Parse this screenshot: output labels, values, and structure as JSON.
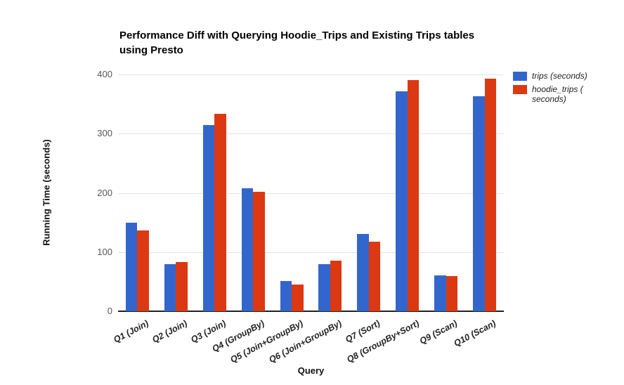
{
  "header": {
    "title_line1": "Performance Diff with Querying Hoodie_Trips and Existing Trips tables",
    "title_line2": "using Presto"
  },
  "axes": {
    "x_title": "Query",
    "y_title": "Running Time (seconds)"
  },
  "legend": {
    "items": [
      {
        "name": "trips",
        "label_lines": [
          "trips (seconds)"
        ],
        "color": "#3366CC"
      },
      {
        "name": "hoodie_trips",
        "label_lines": [
          "hoodie_trips (",
          "seconds)"
        ],
        "color": "#DC3912"
      }
    ]
  },
  "chart_data": {
    "type": "bar",
    "title": "Performance Diff with Querying Hoodie_Trips and Existing Trips tables using Presto",
    "categories": [
      "Q1 (Join)",
      "Q2 (Join)",
      "Q3 (Join)",
      "Q4 (GroupBy)",
      "Q5 (Join+GroupBy)",
      "Q6 (Join+GroupBy)",
      "Q7 (Sort)",
      "Q8 (GroupBy+Sort)",
      "Q9 (Scan)",
      "Q10 (Scan)"
    ],
    "series": [
      {
        "name": "trips (seconds)",
        "color": "#3366CC",
        "values": [
          150,
          80,
          314,
          208,
          51,
          80,
          131,
          371,
          60,
          363
        ]
      },
      {
        "name": "hoodie_trips (seconds)",
        "color": "#DC3912",
        "values": [
          137,
          83,
          333,
          202,
          45,
          85,
          117,
          390,
          59,
          393
        ]
      }
    ],
    "xlabel": "Query",
    "ylabel": "Running Time (seconds)",
    "ylim": [
      0,
      400
    ],
    "yticks": [
      0,
      100,
      200,
      300,
      400
    ],
    "grid": true,
    "legend_position": "right"
  },
  "colors": {
    "gridline": "#e2e2e2",
    "axis_line": "#212121",
    "tick_label": "#555555",
    "title_text": "#000000",
    "category_label": "#222222"
  }
}
